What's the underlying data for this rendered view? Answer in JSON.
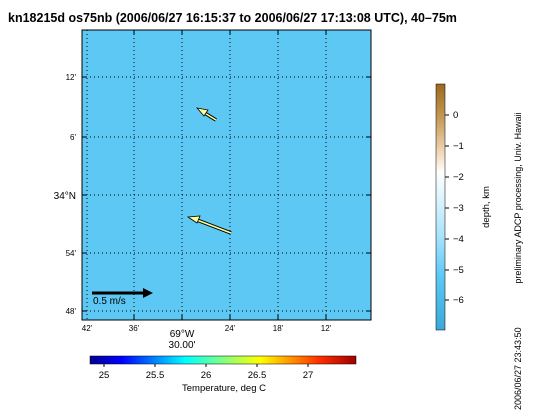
{
  "title": "kn18215d os75nb (2006/06/27 16:15:37 to 2006/06/27 17:13:08 UTC), 40–75m",
  "map": {
    "ocean_color": "#5ec8f5",
    "lat_ticks": [
      "12'",
      "6'",
      "34°N",
      "54'",
      "48'"
    ],
    "lon_ticks": [
      "42'",
      "36'",
      "30'",
      "24'",
      "18'",
      "12'"
    ],
    "lon_deg_label": "69°W",
    "lon_min_label": "30.00'",
    "scale_label": "0.5 m/s",
    "vectors": [
      {
        "name": "vector-upper",
        "color": "#ffff99"
      },
      {
        "name": "vector-lower",
        "color": "#ffff99"
      }
    ]
  },
  "temperature_bar": {
    "ticks": [
      "25",
      "25.5",
      "26",
      "26.5",
      "27"
    ],
    "label": "Temperature, deg C"
  },
  "depth_bar": {
    "ticks": [
      "0",
      "−1",
      "−2",
      "−3",
      "−4",
      "−5",
      "−6"
    ],
    "label": "depth, km"
  },
  "credit": "preliminary ADCP processing,  Univ. Hawaii",
  "timestamp": "2006/06/27 23:43:50"
}
